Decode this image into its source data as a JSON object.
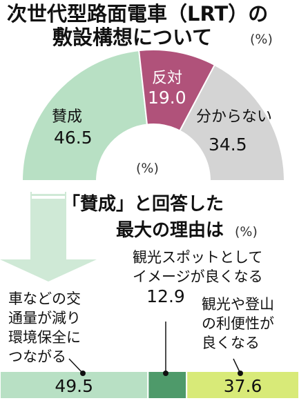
{
  "title_line1": "次世代型路面電車（LRT）の",
  "title_line2": "敷設構想について",
  "title_unit": "(%)",
  "donut_center_unit": "(%)",
  "subtitle_line1": "「賛成」と回答した",
  "subtitle_line2": "最大の理由は",
  "subtitle_unit": "(%)",
  "colors": {
    "sansei": "#b8e0c4",
    "hantai": "#b0527a",
    "wakaranai": "#d4d4d4",
    "kankyo": "#b8e0c4",
    "kanko": "#4e9a6a",
    "tozan": "#d8ea78"
  },
  "chart_data": [
    {
      "type": "pie",
      "donut": true,
      "half": true,
      "unit": "%",
      "categories": [
        "賛成",
        "反対",
        "分からない"
      ],
      "values": [
        46.5,
        19.0,
        34.5
      ],
      "value_labels": [
        "46.5",
        "19.0",
        "34.5"
      ]
    },
    {
      "type": "bar",
      "stacked": true,
      "orientation": "horizontal",
      "unit": "%",
      "categories": [
        [
          "車などの交",
          "通量が減り",
          "環境保全に",
          "つながる"
        ],
        [
          "観光スポットとして",
          "イメージが良くなる"
        ],
        [
          "観光や登山",
          "の利便性が",
          "良くなる"
        ]
      ],
      "values": [
        49.5,
        12.9,
        37.6
      ],
      "value_labels": [
        "49.5",
        "12.9",
        "37.6"
      ]
    }
  ]
}
